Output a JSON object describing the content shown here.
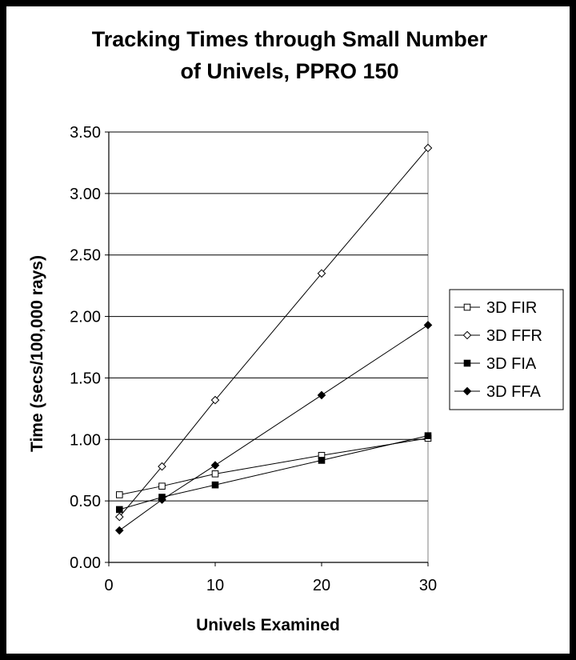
{
  "chart_data": {
    "type": "line",
    "title_lines": [
      "Tracking Times through Small Number",
      "of Univels, PPRO 150"
    ],
    "xlabel": "Univels Examined",
    "ylabel": "Time (secs/100,000 rays)",
    "xlim": [
      0,
      30
    ],
    "ylim": [
      0,
      3.5
    ],
    "x_ticks": [
      0,
      10,
      20,
      30
    ],
    "x_tick_labels": [
      "0",
      "10",
      "20",
      "30"
    ],
    "y_ticks": [
      0,
      0.5,
      1,
      1.5,
      2,
      2.5,
      3,
      3.5
    ],
    "y_tick_labels": [
      "0.00",
      "0.50",
      "1.00",
      "1.50",
      "2.00",
      "2.50",
      "3.00",
      "3.50"
    ],
    "grid": "horizontal",
    "legend_position": "right",
    "x": [
      1,
      5,
      10,
      20,
      30
    ],
    "series": [
      {
        "name": "3D FIR",
        "marker": "square-open",
        "values": [
          0.55,
          0.62,
          0.72,
          0.87,
          1.01
        ]
      },
      {
        "name": "3D FFR",
        "marker": "diamond-open",
        "values": [
          0.37,
          0.78,
          1.32,
          2.35,
          3.37
        ]
      },
      {
        "name": "3D FIA",
        "marker": "square-filled",
        "values": [
          0.43,
          0.53,
          0.63,
          0.83,
          1.03
        ]
      },
      {
        "name": "3D FFA",
        "marker": "diamond-filled",
        "values": [
          0.26,
          0.51,
          0.79,
          1.36,
          1.93
        ]
      }
    ],
    "colors": {
      "background": "#000000",
      "plot": "#ffffff",
      "lines": "#000000"
    }
  }
}
